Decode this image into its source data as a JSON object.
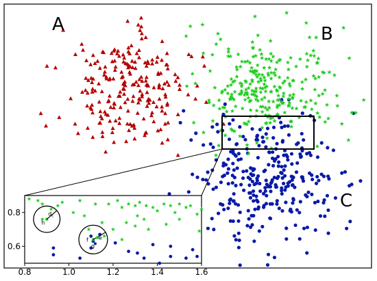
{
  "chart_data": {
    "type": "scatter",
    "main_panel": {
      "axes_visible": false,
      "cluster_labels": [
        "A",
        "B",
        "C"
      ],
      "series": [
        {
          "label": "A",
          "marker": "triangle",
          "color": "#b30000"
        },
        {
          "label": "B",
          "marker": "star",
          "color": "#22cc22"
        },
        {
          "label": "C",
          "marker": "circle",
          "color": "#0a1aa8"
        }
      ],
      "zoom_box_around": "boundary between cluster B and cluster C"
    },
    "inset": {
      "xlim": [
        0.8,
        1.6
      ],
      "ylim": [
        0.5,
        0.9
      ],
      "xticks": [
        "0.8",
        "1.0",
        "1.2",
        "1.4",
        "1.6"
      ],
      "yticks": [
        "0.8",
        "0.6"
      ],
      "circles": [
        {
          "center_label": "h",
          "radius_label": "d_c",
          "x": 0.9,
          "y": 0.76,
          "r": 0.06
        },
        {
          "center_label": "f",
          "x": 1.11,
          "y": 0.64,
          "r": 0.065
        }
      ],
      "point_labels": [
        "e",
        "g"
      ],
      "green_points": [
        [
          0.82,
          0.88
        ],
        [
          0.86,
          0.87
        ],
        [
          0.88,
          0.85
        ],
        [
          0.92,
          0.82
        ],
        [
          0.95,
          0.84
        ],
        [
          0.97,
          0.86
        ],
        [
          1.05,
          0.87
        ],
        [
          1.12,
          0.85
        ],
        [
          1.18,
          0.85
        ],
        [
          1.22,
          0.87
        ],
        [
          1.24,
          0.83
        ],
        [
          1.27,
          0.85
        ],
        [
          1.3,
          0.84
        ],
        [
          1.32,
          0.86
        ],
        [
          1.35,
          0.84
        ],
        [
          1.38,
          0.83
        ],
        [
          1.4,
          0.81
        ],
        [
          1.43,
          0.85
        ],
        [
          1.46,
          0.84
        ],
        [
          1.5,
          0.85
        ],
        [
          1.53,
          0.83
        ],
        [
          1.55,
          0.84
        ],
        [
          1.58,
          0.79
        ],
        [
          1.6,
          0.82
        ],
        [
          1.02,
          0.8
        ],
        [
          1.07,
          0.78
        ],
        [
          1.09,
          0.7
        ],
        [
          1.15,
          0.74
        ],
        [
          1.2,
          0.7
        ],
        [
          1.26,
          0.74
        ],
        [
          1.3,
          0.72
        ],
        [
          1.31,
          0.78
        ],
        [
          1.34,
          0.76
        ],
        [
          1.44,
          0.73
        ],
        [
          1.5,
          0.76
        ],
        [
          1.59,
          0.69
        ],
        [
          1.24,
          0.64
        ],
        [
          0.88,
          0.76
        ],
        [
          1.13,
          0.65
        ],
        [
          1.16,
          0.66
        ],
        [
          1.48,
          0.8
        ],
        [
          1.36,
          0.7
        ]
      ],
      "blue_points": [
        [
          0.93,
          0.59
        ],
        [
          0.93,
          0.55
        ],
        [
          1.1,
          0.59
        ],
        [
          1.21,
          0.62
        ],
        [
          1.27,
          0.57
        ],
        [
          1.38,
          0.61
        ],
        [
          1.46,
          0.6
        ],
        [
          1.56,
          0.58
        ],
        [
          1.58,
          0.54
        ],
        [
          1.05,
          0.53
        ],
        [
          1.34,
          0.53
        ],
        [
          1.46,
          0.54
        ],
        [
          1.53,
          0.53
        ],
        [
          1.41,
          0.5
        ],
        [
          1.14,
          0.67
        ],
        [
          1.31,
          0.56
        ],
        [
          1.11,
          0.63
        ],
        [
          1.1,
          0.66
        ]
      ]
    }
  }
}
